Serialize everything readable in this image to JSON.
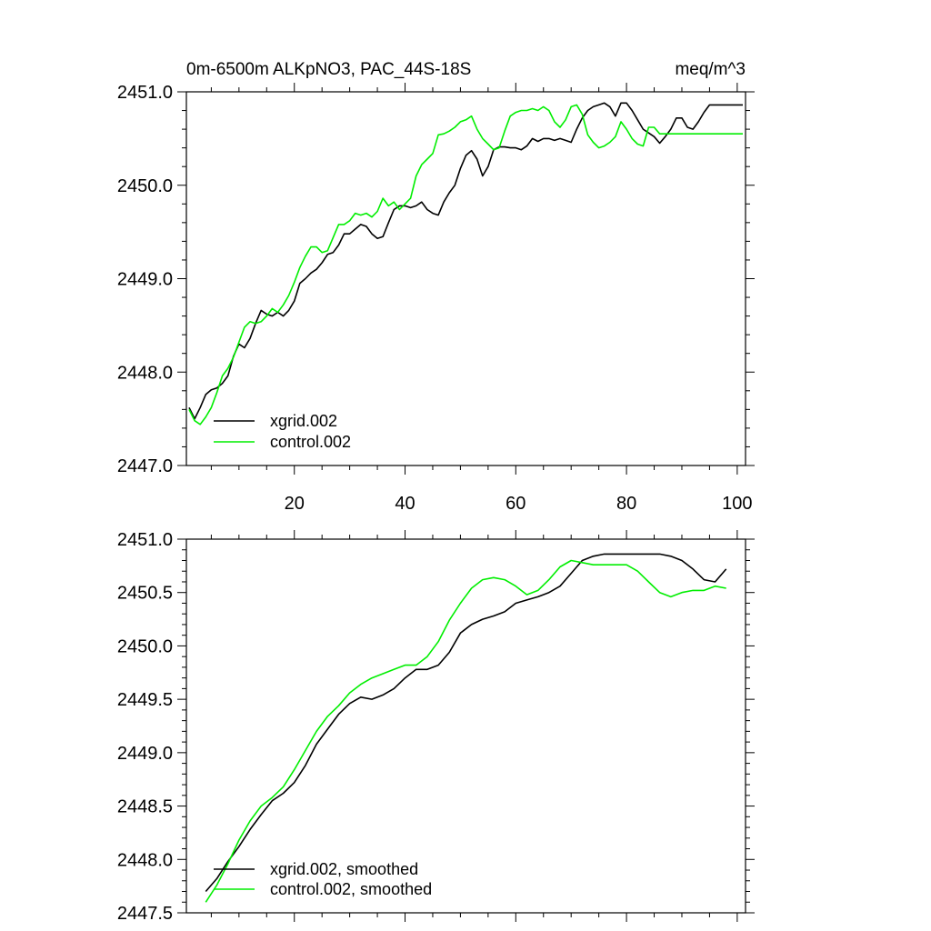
{
  "chart_data": [
    {
      "type": "line",
      "title_left": "0m-6500m ALKpNO3, PAC_44S-18S",
      "title_right": "meq/m^3",
      "xlabel": "",
      "ylabel": "",
      "xlim": [
        0.5,
        101.5
      ],
      "ylim": [
        2447.0,
        2451.0
      ],
      "xticks": [
        20,
        40,
        60,
        80,
        100
      ],
      "xtick_labels": [
        "20",
        "40",
        "60",
        "80",
        "100"
      ],
      "yticks": [
        2447.0,
        2448.0,
        2449.0,
        2450.0,
        2451.0
      ],
      "ytick_labels": [
        "2447.0",
        "2448.0",
        "2449.0",
        "2450.0",
        "2451.0"
      ],
      "legend_position": "bottom-left",
      "series": [
        {
          "name": "xgrid.002",
          "color": "#000000",
          "x": [
            1,
            2,
            3,
            4,
            5,
            6,
            7,
            8,
            9,
            10,
            11,
            12,
            13,
            14,
            15,
            16,
            17,
            18,
            19,
            20,
            21,
            22,
            23,
            24,
            25,
            26,
            27,
            28,
            29,
            30,
            31,
            32,
            33,
            34,
            35,
            36,
            37,
            38,
            39,
            40,
            41,
            42,
            43,
            44,
            45,
            46,
            47,
            48,
            49,
            50,
            51,
            52,
            53,
            54,
            55,
            56,
            57,
            58,
            59,
            60,
            61,
            62,
            63,
            64,
            65,
            66,
            67,
            68,
            69,
            70,
            71,
            72,
            73,
            74,
            75,
            76,
            77,
            78,
            79,
            80,
            81,
            82,
            83,
            84,
            85,
            86,
            87,
            88,
            89,
            90,
            91,
            92,
            93,
            94,
            95,
            96,
            97,
            98,
            99,
            100,
            101
          ],
          "values": [
            2447.62,
            2447.5,
            2447.62,
            2447.76,
            2447.81,
            2447.83,
            2447.88,
            2447.96,
            2448.17,
            2448.3,
            2448.26,
            2448.36,
            2448.52,
            2448.66,
            2448.62,
            2448.6,
            2448.64,
            2448.6,
            2448.66,
            2448.76,
            2448.95,
            2449.0,
            2449.06,
            2449.1,
            2449.17,
            2449.26,
            2449.28,
            2449.36,
            2449.48,
            2449.48,
            2449.53,
            2449.58,
            2449.56,
            2449.48,
            2449.43,
            2449.45,
            2449.6,
            2449.74,
            2449.78,
            2449.78,
            2449.76,
            2449.78,
            2449.82,
            2449.74,
            2449.7,
            2449.68,
            2449.82,
            2449.92,
            2450.0,
            2450.18,
            2450.32,
            2450.37,
            2450.28,
            2450.1,
            2450.2,
            2450.38,
            2450.41,
            2450.41,
            2450.4,
            2450.4,
            2450.38,
            2450.42,
            2450.5,
            2450.47,
            2450.5,
            2450.5,
            2450.48,
            2450.5,
            2450.48,
            2450.46,
            2450.6,
            2450.72,
            2450.8,
            2450.84,
            2450.86,
            2450.88,
            2450.84,
            2450.74,
            2450.88,
            2450.88,
            2450.8,
            2450.7,
            2450.6,
            2450.56,
            2450.52,
            2450.45,
            2450.52,
            2450.6,
            2450.72,
            2450.72,
            2450.62,
            2450.6,
            2450.68,
            2450.78,
            2450.86,
            2450.86,
            2450.86,
            2450.86,
            2450.86,
            2450.86,
            2450.86
          ]
        },
        {
          "name": "control.002",
          "color": "#00ee00",
          "x": [
            1,
            2,
            3,
            4,
            5,
            6,
            7,
            8,
            9,
            10,
            11,
            12,
            13,
            14,
            15,
            16,
            17,
            18,
            19,
            20,
            21,
            22,
            23,
            24,
            25,
            26,
            27,
            28,
            29,
            30,
            31,
            32,
            33,
            34,
            35,
            36,
            37,
            38,
            39,
            40,
            41,
            42,
            43,
            44,
            45,
            46,
            47,
            48,
            49,
            50,
            51,
            52,
            53,
            54,
            55,
            56,
            57,
            58,
            59,
            60,
            61,
            62,
            63,
            64,
            65,
            66,
            67,
            68,
            69,
            70,
            71,
            72,
            73,
            74,
            75,
            76,
            77,
            78,
            79,
            80,
            81,
            82,
            83,
            84,
            85,
            86,
            87,
            88,
            89,
            90,
            91,
            92,
            93,
            94,
            95,
            96,
            97,
            98,
            99,
            100,
            101
          ],
          "values": [
            2447.6,
            2447.48,
            2447.44,
            2447.52,
            2447.62,
            2447.78,
            2447.96,
            2448.04,
            2448.16,
            2448.32,
            2448.48,
            2448.54,
            2448.52,
            2448.54,
            2448.6,
            2448.68,
            2448.64,
            2448.72,
            2448.82,
            2448.96,
            2449.12,
            2449.24,
            2449.34,
            2449.34,
            2449.28,
            2449.3,
            2449.44,
            2449.58,
            2449.58,
            2449.62,
            2449.7,
            2449.68,
            2449.7,
            2449.66,
            2449.72,
            2449.86,
            2449.78,
            2449.82,
            2449.74,
            2449.8,
            2449.86,
            2450.1,
            2450.22,
            2450.28,
            2450.34,
            2450.54,
            2450.55,
            2450.58,
            2450.62,
            2450.68,
            2450.7,
            2450.74,
            2450.6,
            2450.5,
            2450.44,
            2450.38,
            2450.4,
            2450.58,
            2450.74,
            2450.78,
            2450.8,
            2450.8,
            2450.82,
            2450.8,
            2450.84,
            2450.8,
            2450.68,
            2450.62,
            2450.7,
            2450.84,
            2450.86,
            2450.76,
            2450.54,
            2450.46,
            2450.4,
            2450.42,
            2450.46,
            2450.52,
            2450.68,
            2450.6,
            2450.5,
            2450.44,
            2450.42,
            2450.62,
            2450.62,
            2450.55,
            2450.55,
            2450.55,
            2450.55,
            2450.55,
            2450.55,
            2450.55,
            2450.55,
            2450.55,
            2450.55,
            2450.55,
            2450.55,
            2450.55,
            2450.55,
            2450.55,
            2450.55
          ]
        }
      ]
    },
    {
      "type": "line",
      "title_left": "",
      "title_right": "",
      "xlabel": "",
      "ylabel": "",
      "xlim": [
        0.5,
        101.5
      ],
      "ylim": [
        2447.5,
        2451.0
      ],
      "xticks": [
        20,
        40,
        60,
        80,
        100
      ],
      "xtick_labels": [],
      "yticks": [
        2447.5,
        2448.0,
        2448.5,
        2449.0,
        2449.5,
        2450.0,
        2450.5,
        2451.0
      ],
      "ytick_labels": [
        "2447.5",
        "2448.0",
        "2448.5",
        "2449.0",
        "2449.5",
        "2450.0",
        "2450.5",
        "2451.0"
      ],
      "legend_position": "bottom-left",
      "series": [
        {
          "name": "xgrid.002, smoothed",
          "color": "#000000",
          "x": [
            4,
            6,
            8,
            10,
            12,
            14,
            16,
            18,
            20,
            22,
            24,
            26,
            28,
            30,
            32,
            34,
            36,
            38,
            40,
            42,
            44,
            46,
            48,
            50,
            52,
            54,
            56,
            58,
            60,
            62,
            64,
            66,
            68,
            70,
            72,
            74,
            76,
            78,
            80,
            82,
            84,
            86,
            88,
            90,
            92,
            94,
            96,
            98
          ],
          "values": [
            2447.7,
            2447.82,
            2447.98,
            2448.12,
            2448.28,
            2448.42,
            2448.55,
            2448.62,
            2448.72,
            2448.88,
            2449.08,
            2449.22,
            2449.36,
            2449.46,
            2449.52,
            2449.5,
            2449.54,
            2449.6,
            2449.7,
            2449.78,
            2449.78,
            2449.82,
            2449.94,
            2450.12,
            2450.2,
            2450.25,
            2450.28,
            2450.32,
            2450.4,
            2450.43,
            2450.46,
            2450.5,
            2450.56,
            2450.68,
            2450.8,
            2450.84,
            2450.86,
            2450.86,
            2450.86,
            2450.86,
            2450.86,
            2450.86,
            2450.84,
            2450.8,
            2450.72,
            2450.62,
            2450.6,
            2450.72
          ]
        },
        {
          "name": "control.002, smoothed",
          "color": "#00ee00",
          "x": [
            4,
            6,
            8,
            10,
            12,
            14,
            16,
            18,
            20,
            22,
            24,
            26,
            28,
            30,
            32,
            34,
            36,
            38,
            40,
            42,
            44,
            46,
            48,
            50,
            52,
            54,
            56,
            58,
            60,
            62,
            64,
            66,
            68,
            70,
            72,
            74,
            76,
            78,
            80,
            82,
            84,
            86,
            88,
            90,
            92,
            94,
            96,
            98
          ],
          "values": [
            2447.6,
            2447.76,
            2447.96,
            2448.18,
            2448.36,
            2448.5,
            2448.58,
            2448.68,
            2448.84,
            2449.02,
            2449.2,
            2449.34,
            2449.44,
            2449.56,
            2449.64,
            2449.7,
            2449.74,
            2449.78,
            2449.82,
            2449.82,
            2449.9,
            2450.04,
            2450.24,
            2450.4,
            2450.54,
            2450.62,
            2450.64,
            2450.62,
            2450.56,
            2450.48,
            2450.52,
            2450.62,
            2450.74,
            2450.8,
            2450.78,
            2450.76,
            2450.76,
            2450.76,
            2450.76,
            2450.7,
            2450.6,
            2450.5,
            2450.46,
            2450.5,
            2450.52,
            2450.52,
            2450.56,
            2450.54
          ]
        }
      ]
    }
  ]
}
